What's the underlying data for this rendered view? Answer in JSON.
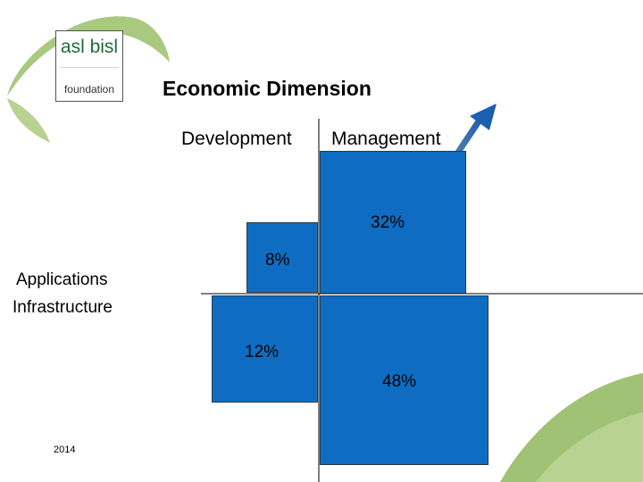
{
  "logo": {
    "top_text": "asl bisl",
    "bottom_text": "foundation"
  },
  "title": "Economic Dimension",
  "columns": {
    "development": "Development",
    "management": "Management"
  },
  "rows": {
    "applications": "Applications",
    "infrastructure": "Infrastructure"
  },
  "quadrants": {
    "dev_applications": "8%",
    "mgmt_applications": "32%",
    "dev_infrastructure": "12%",
    "mgmt_infrastructure": "48%"
  },
  "footer_year": "2014",
  "colors": {
    "box_blue": "#0e6dc2",
    "arrow_blue": "#1b5fb0",
    "leaf_green": "#9fc274"
  }
}
